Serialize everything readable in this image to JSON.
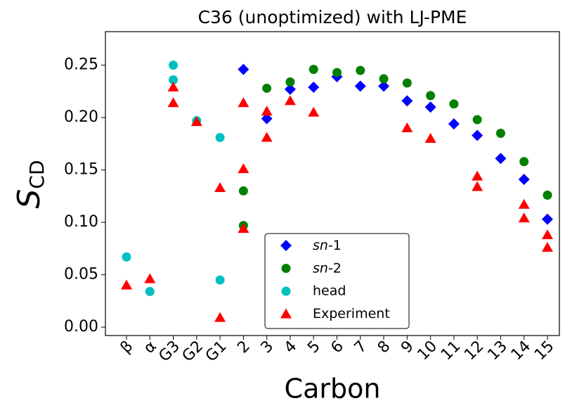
{
  "chart_data": {
    "type": "scatter",
    "title": "C36 (unoptimized) with LJ-PME",
    "xlabel": "Carbon",
    "ylabel": "S",
    "ylabel_subscript": "CD",
    "categories": [
      "β",
      "α",
      "G3",
      "G2",
      "G1",
      "2",
      "3",
      "4",
      "5",
      "6",
      "7",
      "8",
      "9",
      "10",
      "11",
      "12",
      "13",
      "14",
      "15"
    ],
    "ylim": [
      -0.008,
      0.282
    ],
    "yticks": [
      {
        "value": 0,
        "label": "0.00"
      },
      0.05,
      {
        "value": 0.1,
        "label": "0.10"
      },
      0.15,
      {
        "value": 0.2,
        "label": "0.20"
      },
      0.25
    ],
    "legend": "lower center",
    "series": [
      {
        "name": "sn-1",
        "color": "#0000ff",
        "marker": "diamond",
        "x": [
          "2",
          "3",
          "4",
          "5",
          "6",
          "7",
          "8",
          "9",
          "10",
          "11",
          "12",
          "13",
          "14",
          "15"
        ],
        "values": [
          0.246,
          0.199,
          0.227,
          0.229,
          0.239,
          0.23,
          0.23,
          0.216,
          0.21,
          0.194,
          0.183,
          0.161,
          0.141,
          0.103
        ]
      },
      {
        "name": "sn-2",
        "color": "#008000",
        "marker": "circle",
        "x": [
          "2",
          "2",
          "3",
          "4",
          "5",
          "6",
          "7",
          "8",
          "9",
          "10",
          "11",
          "12",
          "13",
          "14",
          "15"
        ],
        "values": [
          0.13,
          0.097,
          0.228,
          0.234,
          0.246,
          0.243,
          0.245,
          0.237,
          0.233,
          0.221,
          0.213,
          0.198,
          0.185,
          0.158,
          0.126
        ]
      },
      {
        "name": "head",
        "color": "#00bfbf",
        "marker": "circle",
        "x": [
          "β",
          "α",
          "G3",
          "G3",
          "G2",
          "G1",
          "G1"
        ],
        "values": [
          0.067,
          0.034,
          0.25,
          0.236,
          0.197,
          0.181,
          0.045
        ]
      },
      {
        "name": "Experiment",
        "color": "#ff0000",
        "marker": "triangle",
        "x": [
          "β",
          "α",
          "G3",
          "G3",
          "G2",
          "G1",
          "G1",
          "2",
          "2",
          "2",
          "3",
          "3",
          "4",
          "5",
          "9",
          "10",
          "12",
          "12",
          "14",
          "14",
          "15",
          "15"
        ],
        "values": [
          0.04,
          0.046,
          0.229,
          0.214,
          0.196,
          0.133,
          0.009,
          0.214,
          0.151,
          0.094,
          0.206,
          0.181,
          0.216,
          0.205,
          0.19,
          0.18,
          0.144,
          0.134,
          0.117,
          0.104,
          0.088,
          0.076
        ]
      }
    ]
  }
}
